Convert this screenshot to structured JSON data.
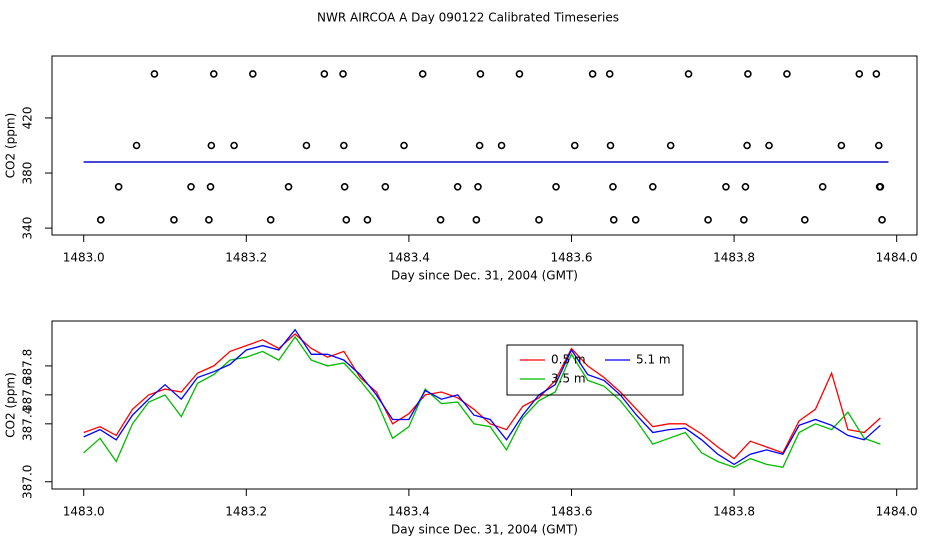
{
  "title": "NWR AIRCOA A  Day 090122  Calibrated Timeseries",
  "chart_data": [
    {
      "type": "scatter",
      "xlabel": "Day since Dec. 31, 2004 (GMT)",
      "ylabel": "CO2 (ppm)",
      "xlim": [
        1482.961,
        1484.025
      ],
      "ylim": [
        335,
        465
      ],
      "xticks": [
        {
          "value": 1483,
          "label": "1483.0"
        },
        1483.2,
        1483.4,
        1483.6,
        1483.8,
        {
          "value": 1484,
          "label": "1484.0"
        }
      ],
      "yticks": [
        340,
        380,
        420
      ],
      "points": {
        "color": "#000000",
        "x": [
          1483.087,
          1483.16,
          1483.208,
          1483.296,
          1483.319,
          1483.417,
          1483.488,
          1483.536,
          1483.626,
          1483.647,
          1483.744,
          1483.817,
          1483.865,
          1483.954,
          1483.975,
          1483.065,
          1483.157,
          1483.185,
          1483.274,
          1483.32,
          1483.394,
          1483.487,
          1483.514,
          1483.604,
          1483.648,
          1483.722,
          1483.816,
          1483.843,
          1483.932,
          1483.978,
          1483.043,
          1483.132,
          1483.156,
          1483.252,
          1483.321,
          1483.371,
          1483.46,
          1483.485,
          1483.581,
          1483.651,
          1483.7,
          1483.79,
          1483.814,
          1483.909,
          1483.979,
          1483.98,
          1483.021,
          1483.111,
          1483.154,
          1483.23,
          1483.323,
          1483.349,
          1483.439,
          1483.483,
          1483.56,
          1483.652,
          1483.679,
          1483.768,
          1483.812,
          1483.887,
          1483.982
        ],
        "y": [
          452,
          452,
          452,
          452,
          452,
          452,
          452,
          452,
          452,
          452,
          452,
          452,
          452,
          452,
          452,
          400,
          400,
          400,
          400,
          400,
          400,
          400,
          400,
          400,
          400,
          400,
          400,
          400,
          400,
          400,
          370,
          370,
          370,
          370,
          370,
          370,
          370,
          370,
          370,
          370,
          370,
          370,
          370,
          370,
          370,
          370,
          346,
          346,
          346,
          346,
          346,
          346,
          346,
          346,
          346,
          346,
          346,
          346,
          346,
          346,
          346
        ]
      },
      "series": [
        {
          "color": "#ff0000",
          "x": [
            1483.0,
            1483.99
          ],
          "values": [
            388,
            388
          ]
        },
        {
          "color": "#00bb00",
          "x": [
            1483.0,
            1483.99
          ],
          "values": [
            388,
            388
          ]
        },
        {
          "color": "#0000ff",
          "x": [
            1483.0,
            1483.99
          ],
          "values": [
            388,
            388
          ]
        }
      ]
    },
    {
      "type": "line",
      "xlabel": "Day since Dec. 31, 2004 (GMT)",
      "ylabel": "CO2 (ppm)",
      "xlim": [
        1482.961,
        1484.025
      ],
      "ylim": [
        386.95,
        388.11
      ],
      "xticks": [
        {
          "value": 1483,
          "label": "1483.0"
        },
        1483.2,
        1483.4,
        1483.6,
        1483.8,
        {
          "value": 1484,
          "label": "1484.0"
        }
      ],
      "yticks": [
        {
          "value": 387,
          "label": "387.0"
        },
        387.4,
        387.6,
        387.8
      ],
      "x": [
        1483.0,
        1483.02,
        1483.04,
        1483.06,
        1483.08,
        1483.1,
        1483.12,
        1483.14,
        1483.16,
        1483.18,
        1483.2,
        1483.22,
        1483.24,
        1483.26,
        1483.28,
        1483.3,
        1483.32,
        1483.34,
        1483.36,
        1483.38,
        1483.4,
        1483.42,
        1483.44,
        1483.46,
        1483.48,
        1483.5,
        1483.52,
        1483.54,
        1483.56,
        1483.58,
        1483.6,
        1483.62,
        1483.64,
        1483.66,
        1483.68,
        1483.7,
        1483.72,
        1483.74,
        1483.76,
        1483.78,
        1483.8,
        1483.82,
        1483.84,
        1483.86,
        1483.88,
        1483.9,
        1483.92,
        1483.94,
        1483.96,
        1483.98
      ],
      "series": [
        {
          "name": "0.5 m",
          "color": "#ff0000",
          "values": [
            387.34,
            387.38,
            387.32,
            387.5,
            387.6,
            387.64,
            387.62,
            387.75,
            387.8,
            387.9,
            387.94,
            387.98,
            387.92,
            388.02,
            387.92,
            387.86,
            387.9,
            387.72,
            387.62,
            387.4,
            387.47,
            387.6,
            387.62,
            387.58,
            387.5,
            387.4,
            387.36,
            387.52,
            387.58,
            387.7,
            387.92,
            387.8,
            387.72,
            387.62,
            387.5,
            387.38,
            387.4,
            387.4,
            387.33,
            387.24,
            387.16,
            387.28,
            387.24,
            387.2,
            387.42,
            387.5,
            387.75,
            387.36,
            387.34,
            387.44
          ]
        },
        {
          "name": "3.5 m",
          "color": "#00bb00",
          "values": [
            387.2,
            387.3,
            387.14,
            387.4,
            387.55,
            387.6,
            387.45,
            387.68,
            387.74,
            387.84,
            387.86,
            387.9,
            387.84,
            388.0,
            387.84,
            387.8,
            387.82,
            387.7,
            387.56,
            387.3,
            387.38,
            387.64,
            387.54,
            387.55,
            387.4,
            387.38,
            387.22,
            387.44,
            387.56,
            387.62,
            387.88,
            387.7,
            387.66,
            387.56,
            387.42,
            387.26,
            387.3,
            387.34,
            387.2,
            387.14,
            387.1,
            387.16,
            387.12,
            387.1,
            387.34,
            387.4,
            387.36,
            387.48,
            387.3,
            387.26
          ]
        },
        {
          "name": "5.1 m",
          "color": "#0000ff",
          "values": [
            387.31,
            387.36,
            387.29,
            387.46,
            387.57,
            387.67,
            387.57,
            387.72,
            387.76,
            387.81,
            387.91,
            387.94,
            387.91,
            388.05,
            387.88,
            387.88,
            387.84,
            387.74,
            387.6,
            387.43,
            387.43,
            387.63,
            387.57,
            387.6,
            387.46,
            387.43,
            387.29,
            387.46,
            387.6,
            387.67,
            387.91,
            387.74,
            387.7,
            387.6,
            387.46,
            387.34,
            387.36,
            387.37,
            387.29,
            387.19,
            387.12,
            387.19,
            387.22,
            387.19,
            387.39,
            387.43,
            387.39,
            387.32,
            387.29,
            387.39
          ]
        }
      ],
      "legend": "top-center"
    }
  ]
}
